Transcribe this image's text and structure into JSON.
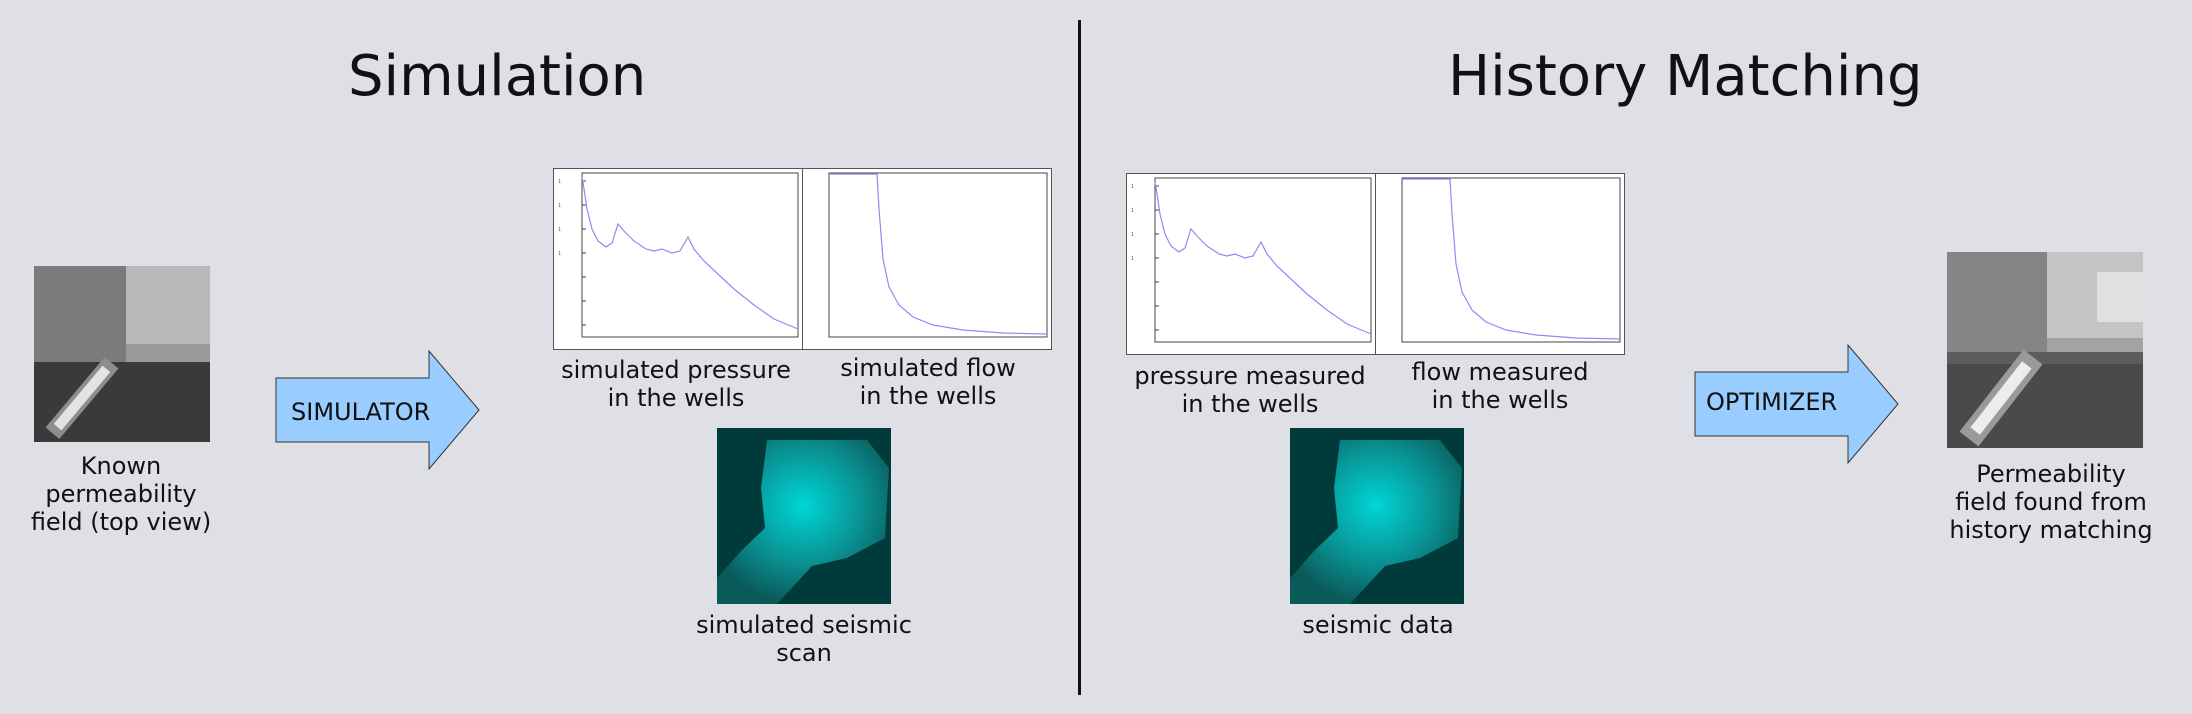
{
  "simulation": {
    "heading": "Simulation",
    "input_caption": "Known\npermeability\nfield (top view)",
    "arrow_label": "SIMULATOR",
    "pressure_caption": "simulated pressure\nin the wells",
    "flow_caption": "simulated flow\nin the wells",
    "seismic_caption": "simulated seismic\nscan"
  },
  "history_matching": {
    "heading": "History Matching",
    "pressure_caption": "pressure measured\nin the wells",
    "flow_caption": "flow measured\nin the wells",
    "seismic_caption": "seismic data",
    "arrow_label": "OPTIMIZER",
    "output_caption": "Permeability\nfield found from\nhistory matching"
  },
  "colors": {
    "background": "#dfe0e5",
    "arrow_fill": "#99ccff",
    "plot_line": "#8c8cf0",
    "seismic_dark": "#003a3a",
    "seismic_bright": "#00d6d6"
  }
}
